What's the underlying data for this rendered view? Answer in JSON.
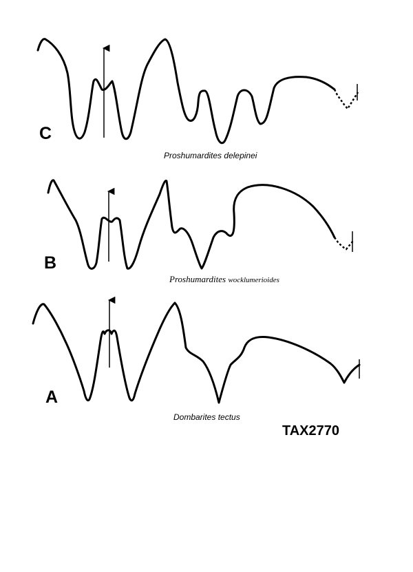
{
  "panels": [
    {
      "letter": "C",
      "species_genus": "Proshumardites",
      "species_epithet": "delepinei"
    },
    {
      "letter": "B",
      "species_genus": "Proshumardites",
      "species_epithet": "wocklumerioides"
    },
    {
      "letter": "A",
      "species_genus": "Dombarites",
      "species_epithet": "tectus"
    }
  ],
  "code": "TAX2770"
}
